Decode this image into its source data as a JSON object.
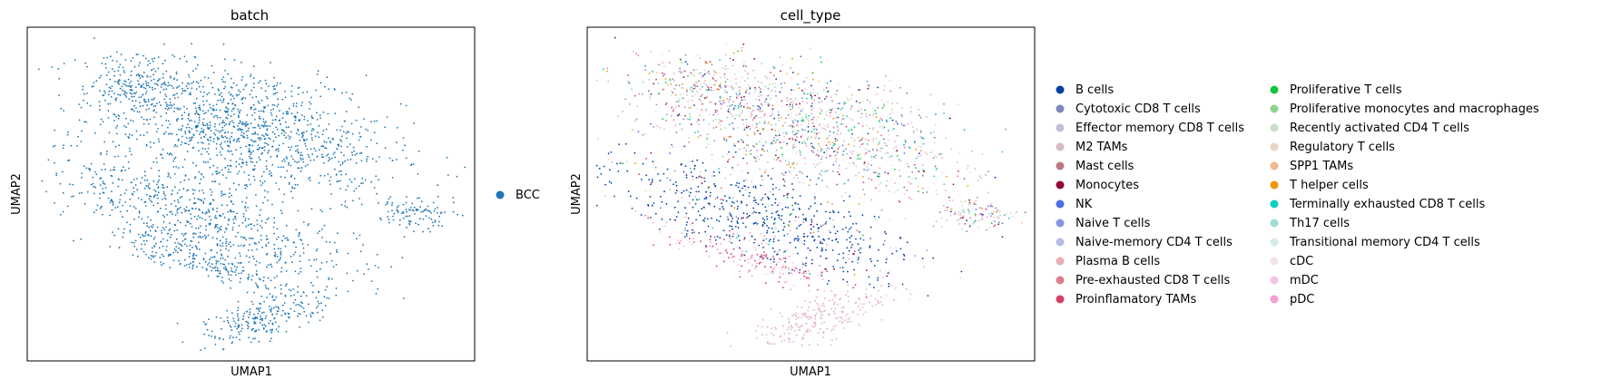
{
  "chart_data": [
    {
      "type": "scatter",
      "title": "batch",
      "xlabel": "UMAP1",
      "ylabel": "UMAP2",
      "xticks": "none",
      "yticks": "none",
      "grid": false,
      "legend_placement": "right-outside",
      "series": [
        {
          "name": "BCC",
          "color": "#1f77b4"
        }
      ]
    },
    {
      "type": "scatter",
      "title": "cell_type",
      "xlabel": "UMAP1",
      "ylabel": "UMAP2",
      "xticks": "none",
      "yticks": "none",
      "grid": false,
      "legend_placement": "right-outside",
      "legend_columns": 2,
      "series": [
        {
          "name": "B cells",
          "color": "#023fa5"
        },
        {
          "name": "Cytotoxic CD8 T cells",
          "color": "#7d87b9"
        },
        {
          "name": "Effector memory CD8 T cells",
          "color": "#bec1d4"
        },
        {
          "name": "M2 TAMs",
          "color": "#d6bcc0"
        },
        {
          "name": "Mast cells",
          "color": "#bb7784"
        },
        {
          "name": "Monocytes",
          "color": "#8e063b"
        },
        {
          "name": "NK",
          "color": "#4a6fe3"
        },
        {
          "name": "Naive T cells",
          "color": "#8595e1"
        },
        {
          "name": "Naive-memory CD4 T cells",
          "color": "#b5bbe3"
        },
        {
          "name": "Plasma B cells",
          "color": "#e6afb9"
        },
        {
          "name": "Pre-exhausted CD8 T cells",
          "color": "#e07b91"
        },
        {
          "name": "Proinflamatory TAMs",
          "color": "#d33f6a"
        },
        {
          "name": "Proliferative T cells",
          "color": "#11c638"
        },
        {
          "name": "Proliferative monocytes and macrophages",
          "color": "#8dd593"
        },
        {
          "name": "Recently activated CD4 T cells",
          "color": "#c6dec7"
        },
        {
          "name": "Regulatory T cells",
          "color": "#ead3c6"
        },
        {
          "name": "SPP1 TAMs",
          "color": "#f0b98d"
        },
        {
          "name": "T helper cells",
          "color": "#ef9708"
        },
        {
          "name": "Terminally exhausted CD8 T cells",
          "color": "#0fcfc0"
        },
        {
          "name": "Th17 cells",
          "color": "#9cded6"
        },
        {
          "name": "Transitional memory CD4 T cells",
          "color": "#d5eae7"
        },
        {
          "name": "cDC",
          "color": "#f3e1eb"
        },
        {
          "name": "mDC",
          "color": "#f6c4e1"
        },
        {
          "name": "pDC",
          "color": "#f79cd4"
        }
      ]
    }
  ]
}
